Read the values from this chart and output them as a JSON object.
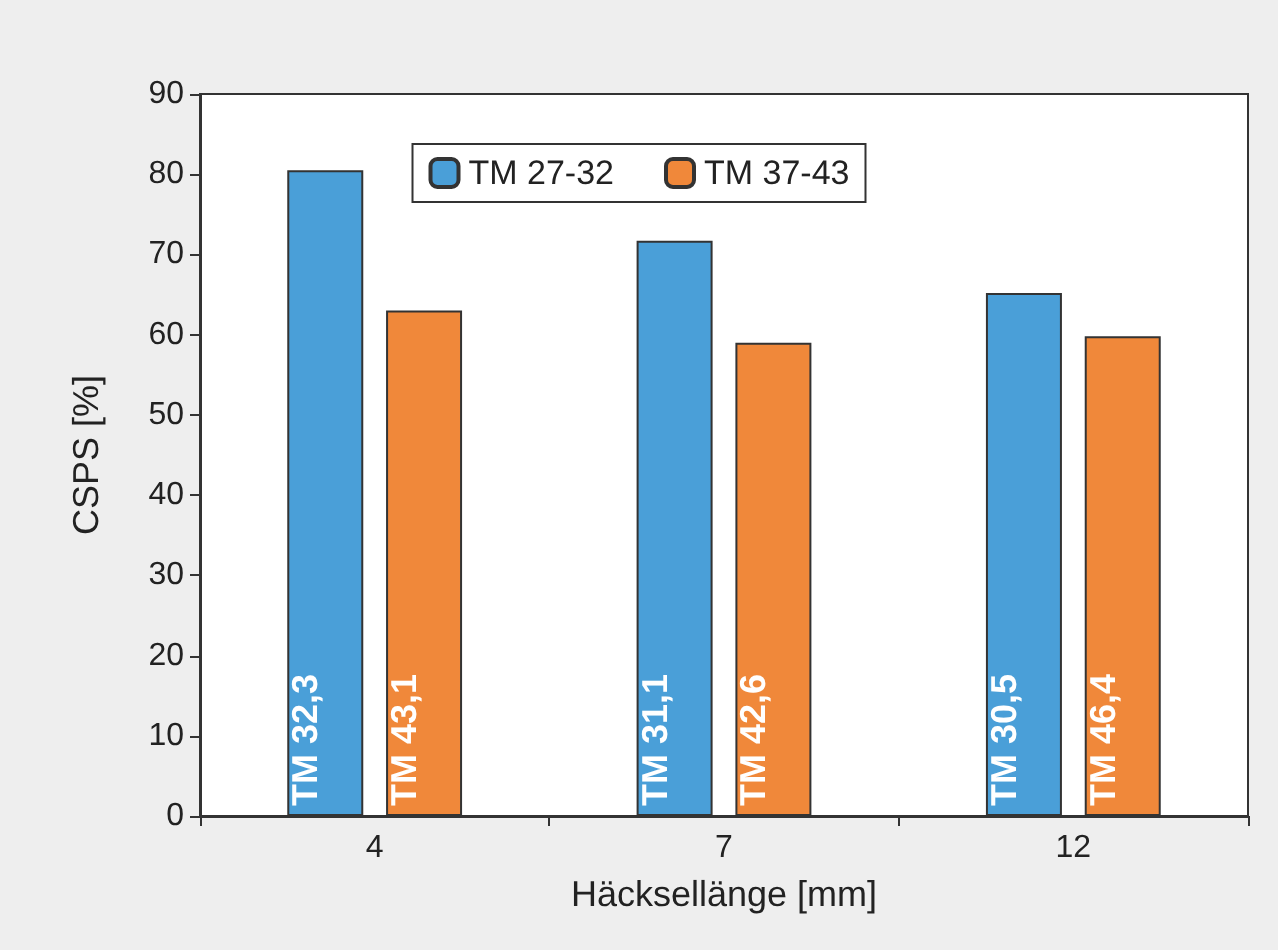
{
  "chart_data": {
    "type": "bar",
    "xlabel": "Häcksellänge [mm]",
    "ylabel": "CSPS [%]",
    "categories": [
      "4",
      "7",
      "12"
    ],
    "series": [
      {
        "name": "TM 27-32",
        "color": "#4a9fd8",
        "values": [
          80.5,
          71.7,
          65.2
        ],
        "value_labels": [
          "TM 32,3",
          "TM 31,1",
          "TM 30,5"
        ]
      },
      {
        "name": "TM 37-43",
        "color": "#f0883a",
        "values": [
          63,
          59,
          59.8
        ],
        "value_labels": [
          "TM 43,1",
          "TM 42,6",
          "TM 46,4"
        ]
      }
    ],
    "ylim": [
      0,
      90
    ],
    "yticks": [
      0,
      10,
      20,
      30,
      40,
      50,
      60,
      70,
      80,
      90
    ],
    "grid": false,
    "legend": "top"
  }
}
